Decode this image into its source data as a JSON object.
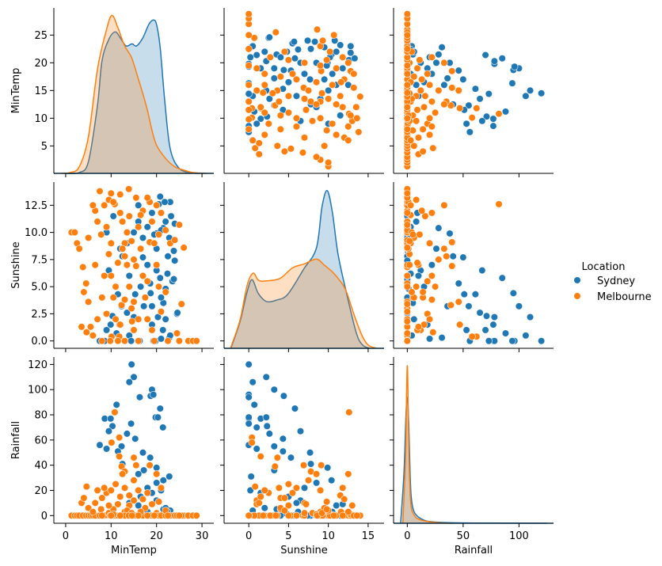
{
  "chart_data": {
    "type": "scatter",
    "kind": "pairplot",
    "variables": [
      "MinTemp",
      "Sunshine",
      "Rainfall"
    ],
    "hue": "Location",
    "legend": {
      "title": "Location",
      "placement": "right",
      "entries": [
        {
          "name": "Sydney",
          "color": "#1f77b4"
        },
        {
          "name": "Melbourne",
          "color": "#ff7f0e"
        }
      ]
    },
    "grid": false,
    "axes": {
      "MinTemp": {
        "label": "MinTemp",
        "xlim": [
          -2.6,
          32.6
        ],
        "ylim": [
          0.05,
          29.9
        ],
        "xticks": {
          "values": [
            0,
            10,
            20,
            30
          ],
          "labels": [
            "0",
            "10",
            "20",
            "30"
          ]
        },
        "yticks": {
          "values": [
            5,
            10,
            15,
            20,
            25
          ],
          "labels": [
            "5",
            "10",
            "15",
            "20",
            "25"
          ]
        }
      },
      "Sunshine": {
        "label": "Sunshine",
        "xlim": [
          -3.1,
          17.0
        ],
        "ylim": [
          -0.68,
          14.64
        ],
        "xticks": {
          "values": [
            0,
            5,
            10,
            15
          ],
          "labels": [
            "0",
            "5",
            "10",
            "15"
          ]
        },
        "yticks": {
          "values": [
            0,
            2.5,
            5,
            7.5,
            10,
            12.5
          ],
          "labels": [
            "0.0",
            "2.5",
            "5.0",
            "7.5",
            "10.0",
            "12.5"
          ]
        }
      },
      "Rainfall": {
        "label": "Rainfall",
        "xlim": [
          -12.3,
          130.9
        ],
        "ylim": [
          -6.1,
          125.9
        ],
        "xticks": {
          "values": [
            0,
            50,
            100
          ],
          "labels": [
            "0",
            "50",
            "100"
          ]
        },
        "yticks": {
          "values": [
            0,
            20,
            40,
            60,
            80,
            100,
            120
          ],
          "labels": [
            "0",
            "20",
            "40",
            "60",
            "80",
            "100",
            "120"
          ]
        }
      }
    },
    "kde": {
      "MinTemp": {
        "Sydney": [
          [
            0,
            0
          ],
          [
            3,
            0.005
          ],
          [
            5,
            0.07
          ],
          [
            7,
            0.41
          ],
          [
            8,
            0.68
          ],
          [
            9.5,
            0.81
          ],
          [
            10.9,
            0.855
          ],
          [
            12,
            0.82
          ],
          [
            13.3,
            0.77
          ],
          [
            14.6,
            0.783
          ],
          [
            15.6,
            0.77
          ],
          [
            17,
            0.82
          ],
          [
            18.3,
            0.9
          ],
          [
            19.3,
            0.927
          ],
          [
            20,
            0.9
          ],
          [
            20.8,
            0.76
          ],
          [
            21.8,
            0.44
          ],
          [
            23,
            0.15
          ],
          [
            25,
            0.03
          ],
          [
            28,
            0.003
          ],
          [
            29.5,
            0
          ]
        ],
        "Melbourne": [
          [
            -1,
            0
          ],
          [
            1,
            0.005
          ],
          [
            3,
            0.04
          ],
          [
            5,
            0.22
          ],
          [
            7,
            0.63
          ],
          [
            9,
            0.87
          ],
          [
            10.2,
            0.955
          ],
          [
            11.5,
            0.88
          ],
          [
            13,
            0.77
          ],
          [
            14.5,
            0.7
          ],
          [
            16,
            0.57
          ],
          [
            17,
            0.48
          ],
          [
            18,
            0.38
          ],
          [
            19,
            0.26
          ],
          [
            20,
            0.17
          ],
          [
            22,
            0.09
          ],
          [
            24,
            0.04
          ],
          [
            26,
            0.02
          ],
          [
            28,
            0.005
          ],
          [
            31,
            0
          ]
        ]
      },
      "Sunshine": {
        "Sydney": [
          [
            -2.25,
            0
          ],
          [
            -1.1,
            0.16
          ],
          [
            -0.26,
            0.33
          ],
          [
            0.4,
            0.413
          ],
          [
            1.2,
            0.33
          ],
          [
            2.2,
            0.282
          ],
          [
            3.5,
            0.29
          ],
          [
            4.9,
            0.325
          ],
          [
            6.9,
            0.476
          ],
          [
            8.5,
            0.603
          ],
          [
            9.2,
            0.85
          ],
          [
            9.85,
            0.949
          ],
          [
            10.5,
            0.82
          ],
          [
            11.2,
            0.571
          ],
          [
            12.2,
            0.349
          ],
          [
            13.5,
            0.095
          ],
          [
            14.3,
            0.02
          ],
          [
            15.2,
            0
          ]
        ],
        "Melbourne": [
          [
            -2.3,
            0
          ],
          [
            -1.1,
            0.17
          ],
          [
            -0.2,
            0.38
          ],
          [
            0.55,
            0.452
          ],
          [
            1.2,
            0.41
          ],
          [
            2.06,
            0.405
          ],
          [
            3.9,
            0.42
          ],
          [
            5.5,
            0.484
          ],
          [
            7.0,
            0.508
          ],
          [
            8.5,
            0.537
          ],
          [
            9.5,
            0.5
          ],
          [
            10.5,
            0.46
          ],
          [
            11.4,
            0.41
          ],
          [
            12.2,
            0.349
          ],
          [
            13.2,
            0.206
          ],
          [
            14.2,
            0.08
          ],
          [
            15.0,
            0.02
          ],
          [
            16.0,
            0
          ]
        ]
      },
      "Rainfall": {
        "Sydney": [
          [
            -6,
            0
          ],
          [
            -3,
            0.3
          ],
          [
            -1.2,
            0.65
          ],
          [
            0,
            0.756
          ],
          [
            1.3,
            0.6
          ],
          [
            2.5,
            0.3
          ],
          [
            3.5,
            0.16
          ],
          [
            5.5,
            0.08
          ],
          [
            8.8,
            0.044
          ],
          [
            14,
            0.022
          ],
          [
            20.5,
            0.01
          ],
          [
            40,
            0.003
          ],
          [
            80,
            0.001
          ],
          [
            125,
            0
          ]
        ],
        "Melbourne": [
          [
            -4,
            0
          ],
          [
            -1.5,
            0.4
          ],
          [
            -0.6,
            0.8
          ],
          [
            0,
            0.949
          ],
          [
            0.6,
            0.8
          ],
          [
            1.5,
            0.4
          ],
          [
            3,
            0.13
          ],
          [
            6,
            0.05
          ],
          [
            12,
            0.02
          ],
          [
            25,
            0.005
          ],
          [
            40,
            0
          ]
        ]
      }
    },
    "points": {
      "columns": [
        "MinTemp",
        "Sunshine",
        "Rainfall"
      ],
      "Sydney": [
        [
          14.5,
          0,
          120
        ],
        [
          15,
          2.2,
          110
        ],
        [
          14,
          0.5,
          106
        ],
        [
          19,
          3.2,
          100
        ],
        [
          18.7,
          4.4,
          95
        ],
        [
          19.3,
          0,
          96
        ],
        [
          16.3,
          0,
          94
        ],
        [
          11.2,
          0.7,
          88
        ],
        [
          20.8,
          5.8,
          85
        ],
        [
          8.6,
          0,
          77
        ],
        [
          9.9,
          1.5,
          77
        ],
        [
          19.8,
          0,
          78
        ],
        [
          20.3,
          2.2,
          78
        ],
        [
          14.4,
          0,
          73
        ],
        [
          10.3,
          2.3,
          71
        ],
        [
          21.4,
          1,
          70
        ],
        [
          9.5,
          6.5,
          67
        ],
        [
          13.5,
          2.6,
          65
        ],
        [
          15.3,
          4.3,
          61
        ],
        [
          7.5,
          0,
          56
        ],
        [
          12.3,
          3.2,
          55
        ],
        [
          9,
          1,
          53
        ],
        [
          11.5,
          4.3,
          51
        ],
        [
          17,
          7.7,
          50
        ],
        [
          18.6,
          5.3,
          46
        ],
        [
          12.5,
          7.8,
          41
        ],
        [
          20,
          9.9,
          38
        ],
        [
          22.8,
          0.3,
          31
        ],
        [
          21.5,
          10.4,
          28
        ],
        [
          17.2,
          3.2,
          36
        ],
        [
          16,
          12.5,
          33
        ],
        [
          19.5,
          9.8,
          0
        ],
        [
          21,
          10.2,
          0.2
        ],
        [
          22,
          11,
          0
        ],
        [
          23,
          12.8,
          0
        ],
        [
          22.5,
          7.8,
          0
        ],
        [
          23.5,
          5.5,
          0
        ],
        [
          24.5,
          2.5,
          0
        ],
        [
          23.8,
          8.3,
          0.4
        ],
        [
          22,
          4.8,
          1.2
        ],
        [
          20.5,
          12.6,
          0
        ],
        [
          18,
          10.5,
          3
        ],
        [
          17,
          9.5,
          0
        ],
        [
          16,
          11,
          8
        ],
        [
          15,
          10,
          0
        ],
        [
          13.5,
          9,
          2
        ],
        [
          12,
          8.5,
          0
        ],
        [
          10.5,
          11.5,
          0
        ],
        [
          9,
          10,
          0.2
        ],
        [
          20,
          6.5,
          12
        ],
        [
          21.5,
          3.5,
          5
        ],
        [
          19,
          1.5,
          18
        ],
        [
          18,
          7,
          22
        ],
        [
          16.5,
          5,
          15
        ],
        [
          14,
          6,
          10
        ],
        [
          22.8,
          9.5,
          2
        ],
        [
          23.2,
          11.5,
          0
        ],
        [
          21.8,
          12.8,
          0.6
        ],
        [
          20.8,
          13.3,
          0
        ],
        [
          22,
          2,
          6
        ],
        [
          21,
          0.2,
          20
        ],
        [
          23,
          0.5,
          4
        ],
        [
          20,
          8.5,
          26
        ],
        [
          19,
          11.8,
          9
        ],
        [
          24,
          10.8,
          0
        ],
        [
          22.4,
          6.2,
          3
        ],
        [
          21,
          4,
          0
        ],
        [
          24,
          7.4,
          0
        ],
        [
          23.8,
          5.7,
          0
        ],
        [
          24.6,
          2.6,
          0
        ]
      ],
      "Melbourne": [
        [
          10.8,
          12.6,
          82
        ],
        [
          11.8,
          0.4,
          62
        ],
        [
          10.1,
          0.4,
          58
        ],
        [
          11.8,
          1.5,
          47
        ],
        [
          15,
          3.6,
          46
        ],
        [
          12.3,
          3.3,
          39
        ],
        [
          18.5,
          9.1,
          40
        ],
        [
          15.5,
          6.9,
          40
        ],
        [
          20,
          12.5,
          33
        ],
        [
          13,
          7.8,
          35
        ],
        [
          4.6,
          0.8,
          23
        ],
        [
          21,
          11.8,
          22
        ],
        [
          1.3,
          10,
          0
        ],
        [
          2,
          10,
          0
        ],
        [
          2.5,
          9,
          0
        ],
        [
          3,
          8.5,
          0
        ],
        [
          3.8,
          6.8,
          0
        ],
        [
          4.5,
          5.3,
          0
        ],
        [
          5,
          3.6,
          0
        ],
        [
          5.5,
          1.3,
          0
        ],
        [
          6,
          0.5,
          0
        ],
        [
          7,
          11,
          0
        ],
        [
          6.5,
          12,
          0
        ],
        [
          7.5,
          13.8,
          0
        ],
        [
          8.5,
          12.5,
          0
        ],
        [
          9,
          10.5,
          0.4
        ],
        [
          9.5,
          8,
          2
        ],
        [
          10,
          6,
          0
        ],
        [
          10.5,
          4,
          5
        ],
        [
          11,
          2,
          0
        ],
        [
          11.5,
          0,
          0
        ],
        [
          12,
          13.5,
          0.2
        ],
        [
          12.5,
          11,
          0
        ],
        [
          13,
          9,
          3
        ],
        [
          13.5,
          7,
          0
        ],
        [
          14,
          5,
          8
        ],
        [
          14.5,
          3,
          0
        ],
        [
          15,
          1,
          12
        ],
        [
          15.5,
          13.2,
          0
        ],
        [
          16,
          10.5,
          0
        ],
        [
          16.5,
          8.5,
          1
        ],
        [
          17,
          6,
          0
        ],
        [
          17.5,
          4,
          6
        ],
        [
          18,
          2,
          0
        ],
        [
          18.5,
          12.8,
          0
        ],
        [
          19,
          11,
          0
        ],
        [
          19.5,
          9,
          0
        ],
        [
          20,
          7,
          2
        ],
        [
          20.5,
          5,
          0
        ],
        [
          21,
          2.7,
          0
        ],
        [
          22,
          10.2,
          0
        ],
        [
          23,
          9,
          0
        ],
        [
          24,
          9.3,
          0
        ],
        [
          25,
          10.7,
          0
        ],
        [
          26,
          8.6,
          0
        ],
        [
          25.5,
          3.4,
          0
        ],
        [
          24.5,
          0.7,
          0
        ],
        [
          27,
          0,
          0
        ],
        [
          28,
          0,
          0
        ],
        [
          28.8,
          0,
          0
        ],
        [
          6.5,
          7,
          10
        ],
        [
          8,
          4,
          14
        ],
        [
          9,
          2.5,
          18
        ],
        [
          10,
          9,
          20
        ],
        [
          11,
          5,
          25
        ],
        [
          12,
          1.5,
          15
        ],
        [
          13,
          3.8,
          22
        ],
        [
          14,
          11.5,
          16
        ],
        [
          15,
          7.5,
          28
        ],
        [
          16,
          2,
          20
        ],
        [
          17,
          12,
          13
        ],
        [
          18,
          5.5,
          18
        ],
        [
          19,
          1,
          9
        ],
        [
          20.5,
          9.8,
          11
        ],
        [
          22,
          4.5,
          4
        ],
        [
          3.5,
          1.3,
          10
        ],
        [
          4,
          4.5,
          14
        ],
        [
          5,
          9.5,
          6
        ],
        [
          7,
          2,
          20
        ],
        [
          8.5,
          6,
          22
        ],
        [
          9.5,
          13,
          8
        ],
        [
          12.5,
          8.5,
          33
        ],
        [
          13.5,
          10,
          4
        ],
        [
          10.5,
          12.8,
          1
        ],
        [
          14.5,
          9.2,
          2
        ],
        [
          16.5,
          11.6,
          3
        ],
        [
          18,
          13.2,
          0
        ],
        [
          7.8,
          9.8,
          5
        ],
        [
          11.5,
          7.2,
          9
        ],
        [
          6,
          12.5,
          3
        ],
        [
          8,
          0,
          0
        ],
        [
          9.8,
          0,
          0
        ],
        [
          13,
          0,
          0
        ],
        [
          16,
          0,
          0
        ],
        [
          19.5,
          0,
          0
        ],
        [
          22.5,
          0,
          0
        ],
        [
          25,
          0,
          0
        ],
        [
          12,
          11.8,
          0
        ],
        [
          13.9,
          14,
          0
        ],
        [
          10,
          13.6,
          0
        ],
        [
          14.6,
          1.8,
          0
        ]
      ]
    }
  }
}
